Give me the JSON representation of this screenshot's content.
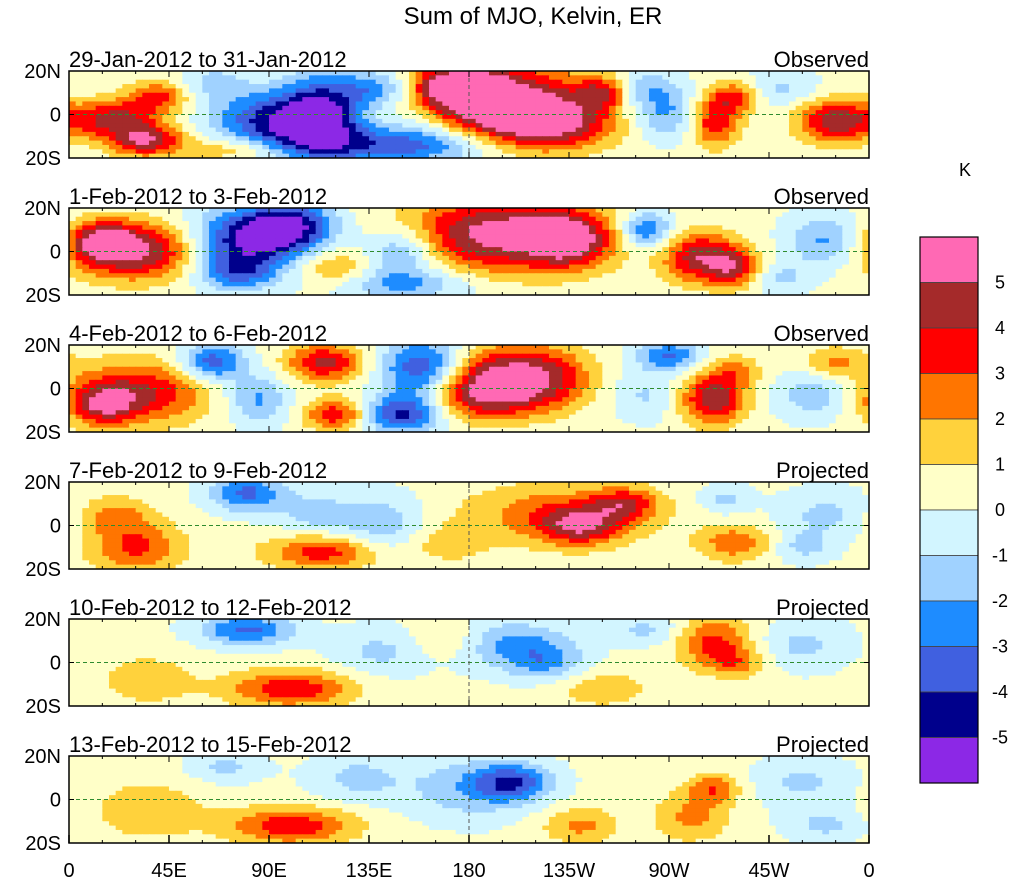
{
  "chart_data": {
    "type": "heatmap",
    "title": "Sum of MJO, Kelvin, ER",
    "units": "K",
    "colorbar": {
      "labels": [
        "5",
        "4",
        "3",
        "2",
        "1",
        "0",
        "-1",
        "-2",
        "-3",
        "-4",
        "-5"
      ],
      "colors": [
        "#ff69b4",
        "#a52a2a",
        "#ff0000",
        "#ff7500",
        "#ffd23c",
        "#ffffc8",
        "#d2f5ff",
        "#a0d2ff",
        "#1e8cff",
        "#4060e0",
        "#00008c",
        "#8c28e6"
      ]
    },
    "lat_ticks": [
      "20N",
      "0",
      "20S"
    ],
    "lon_ticks": [
      "0",
      "45E",
      "90E",
      "135E",
      "180",
      "135W",
      "90W",
      "45W",
      "0"
    ],
    "panels": [
      {
        "period": "29-Jan-2012 to 31-Jan-2012",
        "status": "Observed",
        "blobs": [
          [
            20,
            -2,
            14,
            6,
            4
          ],
          [
            35,
            -12,
            12,
            5,
            4.5
          ],
          [
            40,
            8,
            10,
            5,
            3
          ],
          [
            95,
            -3,
            20,
            10,
            -5
          ],
          [
            115,
            0,
            12,
            14,
            -4
          ],
          [
            140,
            12,
            12,
            6,
            -3
          ],
          [
            150,
            -14,
            30,
            6,
            -4
          ],
          [
            175,
            12,
            15,
            7,
            5
          ],
          [
            195,
            5,
            28,
            12,
            5.5
          ],
          [
            215,
            -5,
            20,
            8,
            4
          ],
          [
            240,
            10,
            8,
            5,
            3
          ],
          [
            290,
            -3,
            8,
            8,
            4
          ],
          [
            300,
            8,
            8,
            5,
            3
          ],
          [
            345,
            -3,
            12,
            7,
            4.5
          ],
          [
            270,
            0,
            12,
            8,
            -2.5
          ],
          [
            260,
            12,
            10,
            6,
            -2
          ],
          [
            160,
            0,
            12,
            8,
            -1.5
          ],
          [
            320,
            12,
            12,
            6,
            -1.5
          ],
          [
            65,
            15,
            10,
            6,
            -1.5
          ],
          [
            75,
            -16,
            15,
            4,
            2
          ]
        ]
      },
      {
        "period": "1-Feb-2012 to 3-Feb-2012",
        "status": "Observed",
        "blobs": [
          [
            30,
            0,
            20,
            9,
            5
          ],
          [
            15,
            5,
            10,
            6,
            4
          ],
          [
            80,
            5,
            18,
            10,
            -5
          ],
          [
            100,
            12,
            14,
            8,
            -4.5
          ],
          [
            75,
            -10,
            12,
            6,
            -3
          ],
          [
            150,
            0,
            12,
            8,
            -3
          ],
          [
            150,
            -15,
            22,
            5,
            -2.5
          ],
          [
            195,
            8,
            30,
            12,
            5.5
          ],
          [
            225,
            5,
            12,
            8,
            4
          ],
          [
            260,
            10,
            8,
            6,
            -3.5
          ],
          [
            285,
            -3,
            12,
            8,
            4.5
          ],
          [
            300,
            -8,
            8,
            6,
            3
          ],
          [
            340,
            5,
            12,
            8,
            -2.5
          ],
          [
            320,
            -12,
            10,
            5,
            -1.5
          ],
          [
            120,
            -8,
            12,
            6,
            2
          ]
        ]
      },
      {
        "period": "4-Feb-2012 to 6-Feb-2012",
        "status": "Observed",
        "blobs": [
          [
            30,
            -2,
            22,
            10,
            4
          ],
          [
            15,
            -8,
            10,
            6,
            3
          ],
          [
            65,
            12,
            10,
            6,
            -4
          ],
          [
            85,
            -5,
            10,
            8,
            -2.5
          ],
          [
            115,
            12,
            12,
            6,
            4
          ],
          [
            120,
            -12,
            10,
            5,
            3.5
          ],
          [
            150,
            -12,
            12,
            6,
            -4.5
          ],
          [
            160,
            8,
            14,
            10,
            -5.5
          ],
          [
            205,
            5,
            30,
            10,
            5.5
          ],
          [
            185,
            -3,
            18,
            8,
            3
          ],
          [
            240,
            5,
            15,
            10,
            -2
          ],
          [
            260,
            -3,
            10,
            8,
            -1.5
          ],
          [
            290,
            -5,
            10,
            8,
            4.5
          ],
          [
            300,
            8,
            8,
            5,
            2
          ],
          [
            335,
            -3,
            12,
            8,
            -2
          ],
          [
            345,
            12,
            10,
            5,
            2
          ],
          [
            270,
            15,
            10,
            5,
            -3.5
          ]
        ]
      },
      {
        "period": "7-Feb-2012 to 9-Feb-2012",
        "status": "Projected",
        "blobs": [
          [
            30,
            -10,
            15,
            8,
            3
          ],
          [
            20,
            5,
            12,
            6,
            2
          ],
          [
            80,
            15,
            12,
            6,
            -3.5
          ],
          [
            115,
            -12,
            18,
            6,
            3.5
          ],
          [
            140,
            0,
            15,
            10,
            -2
          ],
          [
            110,
            5,
            12,
            8,
            -1.5
          ],
          [
            220,
            5,
            30,
            10,
            2.5
          ],
          [
            230,
            0,
            12,
            6,
            3.5
          ],
          [
            250,
            10,
            10,
            5,
            3
          ],
          [
            300,
            -8,
            12,
            6,
            2.5
          ],
          [
            295,
            12,
            8,
            5,
            -1.5
          ],
          [
            340,
            5,
            15,
            8,
            -1.5
          ],
          [
            330,
            -10,
            10,
            5,
            -1.5
          ],
          [
            170,
            -8,
            12,
            6,
            1.5
          ]
        ]
      },
      {
        "period": "10-Feb-2012 to 12-Feb-2012",
        "status": "Projected",
        "blobs": [
          [
            100,
            -12,
            20,
            6,
            3.5
          ],
          [
            35,
            -8,
            15,
            8,
            1.5
          ],
          [
            80,
            15,
            15,
            5,
            -3.5
          ],
          [
            200,
            8,
            18,
            8,
            -2.5
          ],
          [
            215,
            0,
            12,
            6,
            -2
          ],
          [
            240,
            -12,
            15,
            6,
            1.5
          ],
          [
            290,
            10,
            12,
            8,
            3
          ],
          [
            300,
            0,
            10,
            5,
            2
          ],
          [
            330,
            8,
            15,
            8,
            -1.5
          ],
          [
            140,
            5,
            15,
            8,
            -1.5
          ],
          [
            170,
            10,
            12,
            6,
            1.2
          ],
          [
            260,
            15,
            12,
            5,
            -1.5
          ]
        ]
      },
      {
        "period": "13-Feb-2012 to 15-Feb-2012",
        "status": "Projected",
        "blobs": [
          [
            100,
            -12,
            20,
            6,
            3.5
          ],
          [
            35,
            -5,
            18,
            10,
            1.5
          ],
          [
            180,
            5,
            20,
            10,
            -2
          ],
          [
            200,
            8,
            12,
            6,
            -3.5
          ],
          [
            130,
            10,
            15,
            8,
            -1.5
          ],
          [
            230,
            -12,
            12,
            6,
            2
          ],
          [
            280,
            -8,
            12,
            8,
            2
          ],
          [
            290,
            5,
            8,
            5,
            2.5
          ],
          [
            330,
            8,
            15,
            8,
            -1.5
          ],
          [
            340,
            -12,
            12,
            5,
            -1.5
          ],
          [
            70,
            15,
            12,
            5,
            -1.5
          ]
        ]
      }
    ]
  }
}
